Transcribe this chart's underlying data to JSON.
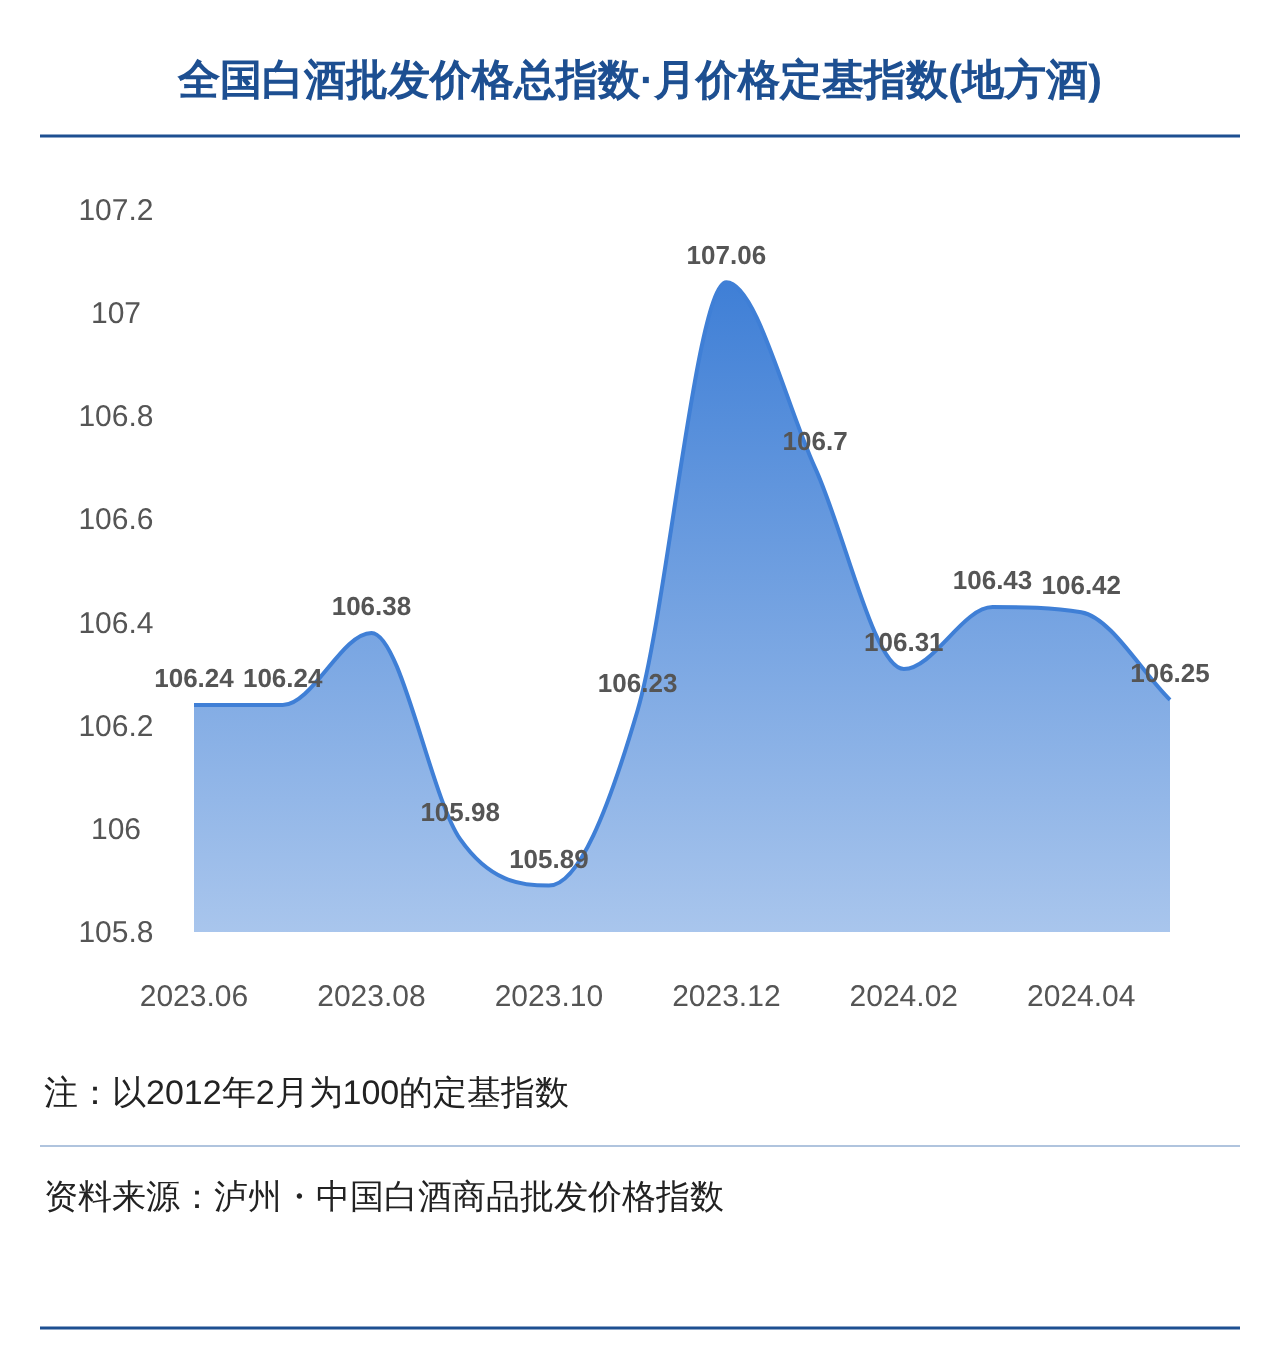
{
  "chart_data": {
    "type": "area",
    "title": "全国白酒批发价格总指数·月价格定基指数(地方酒)",
    "categories": [
      "2023.06",
      null,
      "2023.08",
      null,
      "2023.10",
      null,
      "2023.12",
      null,
      "2024.02",
      null,
      "2024.04",
      null
    ],
    "values": [
      106.24,
      106.24,
      106.38,
      105.98,
      105.89,
      106.23,
      107.06,
      106.7,
      106.31,
      106.43,
      106.42,
      106.25
    ],
    "color": "#3f7fd6",
    "ylim": [
      105.8,
      107.2
    ],
    "yticks": [
      105.8,
      106,
      106.2,
      106.4,
      106.6,
      106.8,
      107,
      107.2
    ],
    "data_labels": true,
    "annotations": [
      "注：以2012年2月为100的定基指数",
      "资料来源：泸州・中国白酒商品批发价格指数"
    ]
  }
}
